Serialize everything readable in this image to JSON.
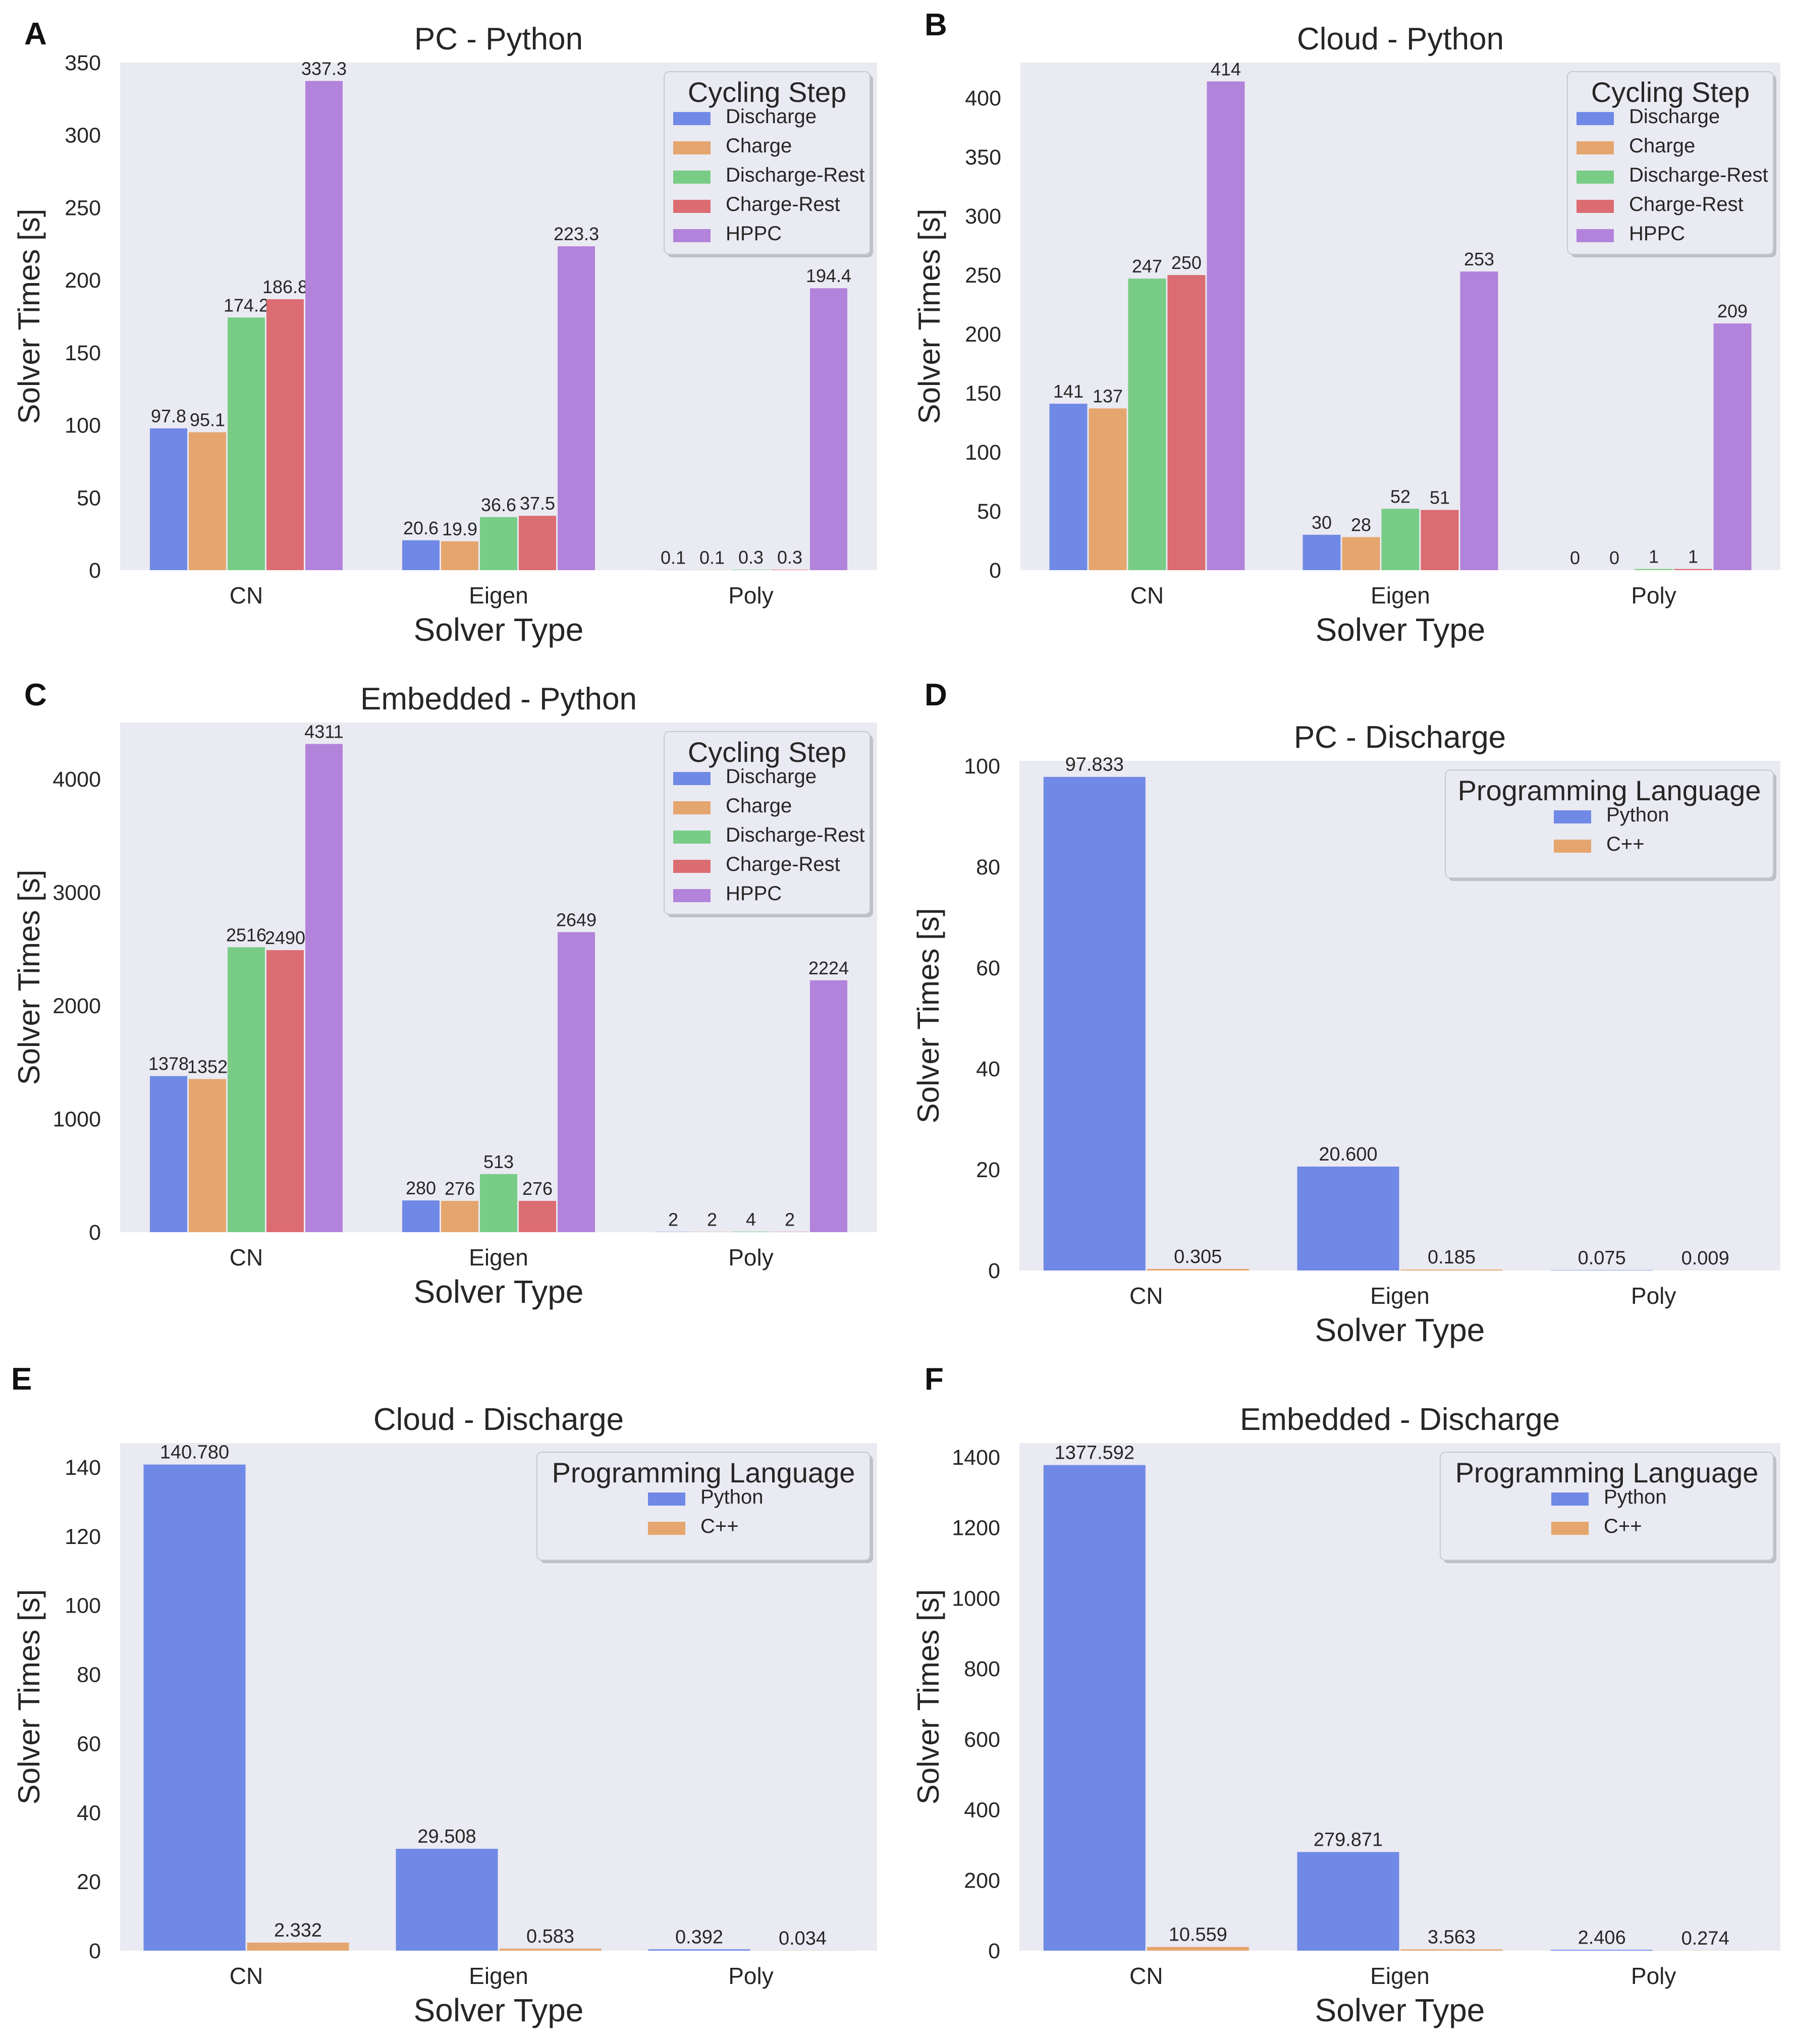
{
  "figure": {
    "colors": {
      "Discharge": "#7089e6",
      "Charge": "#e4a66e",
      "Discharge-Rest": "#79cc86",
      "Charge-Rest": "#db6c72",
      "HPPC": "#b283da",
      "Python": "#7089e6",
      "C++": "#e4a66e",
      "plot_background": "#eaeaf2",
      "text": "#262626"
    }
  },
  "chart_data": [
    {
      "panel_label": "A",
      "type": "bar",
      "title": "PC - Python",
      "xlabel": "Solver Type",
      "ylabel": "Solver Times [s]",
      "categories": [
        "CN",
        "Eigen",
        "Poly"
      ],
      "ylim": [
        0,
        350
      ],
      "yticks": [
        0,
        50,
        100,
        150,
        200,
        250,
        300,
        350
      ],
      "legend_title": "Cycling Step",
      "legend_position": "top-right",
      "series": [
        {
          "name": "Discharge",
          "values": [
            97.8,
            20.6,
            0.1
          ],
          "labels": [
            "97.8",
            "20.6",
            "0.1"
          ]
        },
        {
          "name": "Charge",
          "values": [
            95.1,
            19.9,
            0.1
          ],
          "labels": [
            "95.1",
            "19.9",
            "0.1"
          ]
        },
        {
          "name": "Discharge-Rest",
          "values": [
            174.2,
            36.6,
            0.3
          ],
          "labels": [
            "174.2",
            "36.6",
            "0.3"
          ]
        },
        {
          "name": "Charge-Rest",
          "values": [
            186.8,
            37.5,
            0.3
          ],
          "labels": [
            "186.8",
            "37.5",
            "0.3"
          ]
        },
        {
          "name": "HPPC",
          "values": [
            337.3,
            223.3,
            194.4
          ],
          "labels": [
            "337.3",
            "223.3",
            "194.4"
          ]
        }
      ]
    },
    {
      "panel_label": "B",
      "type": "bar",
      "title": "Cloud - Python",
      "xlabel": "Solver Type",
      "ylabel": "Solver Times [s]",
      "categories": [
        "CN",
        "Eigen",
        "Poly"
      ],
      "ylim": [
        0,
        430
      ],
      "yticks": [
        0,
        50,
        100,
        150,
        200,
        250,
        300,
        350,
        400
      ],
      "legend_title": "Cycling Step",
      "legend_position": "top-right",
      "series": [
        {
          "name": "Discharge",
          "values": [
            141,
            30,
            0
          ],
          "labels": [
            "141",
            "30",
            "0"
          ]
        },
        {
          "name": "Charge",
          "values": [
            137,
            28,
            0
          ],
          "labels": [
            "137",
            "28",
            "0"
          ]
        },
        {
          "name": "Discharge-Rest",
          "values": [
            247,
            52,
            1
          ],
          "labels": [
            "247",
            "52",
            "1"
          ]
        },
        {
          "name": "Charge-Rest",
          "values": [
            250,
            51,
            1
          ],
          "labels": [
            "250",
            "51",
            "1"
          ]
        },
        {
          "name": "HPPC",
          "values": [
            414,
            253,
            209
          ],
          "labels": [
            "414",
            "253",
            "209"
          ]
        }
      ]
    },
    {
      "panel_label": "C",
      "type": "bar",
      "title": "Embedded - Python",
      "xlabel": "Solver Type",
      "ylabel": "Solver Times [s]",
      "categories": [
        "CN",
        "Eigen",
        "Poly"
      ],
      "ylim": [
        0,
        4500
      ],
      "yticks": [
        0,
        1000,
        2000,
        3000,
        4000
      ],
      "legend_title": "Cycling Step",
      "legend_position": "top-right",
      "series": [
        {
          "name": "Discharge",
          "values": [
            1378,
            280,
            2
          ],
          "labels": [
            "1378",
            "280",
            "2"
          ]
        },
        {
          "name": "Charge",
          "values": [
            1352,
            276,
            2
          ],
          "labels": [
            "1352",
            "276",
            "2"
          ]
        },
        {
          "name": "Discharge-Rest",
          "values": [
            2516,
            513,
            4
          ],
          "labels": [
            "2516",
            "513",
            "4"
          ]
        },
        {
          "name": "Charge-Rest",
          "values": [
            2490,
            276,
            2
          ],
          "labels": [
            "2490",
            "276",
            "2"
          ]
        },
        {
          "name": "HPPC",
          "values": [
            4311,
            2649,
            2224
          ],
          "labels": [
            "4311",
            "2649",
            "2224"
          ]
        }
      ]
    },
    {
      "panel_label": "D",
      "type": "bar",
      "title": "PC - Discharge",
      "xlabel": "Solver Type",
      "ylabel": "Solver Times [s]",
      "categories": [
        "CN",
        "Eigen",
        "Poly"
      ],
      "ylim": [
        0,
        101
      ],
      "yticks": [
        0,
        20,
        40,
        60,
        80,
        100
      ],
      "legend_title": "Programming Language",
      "legend_position": "top-right",
      "series": [
        {
          "name": "Python",
          "values": [
            97.833,
            20.6,
            0.075
          ],
          "labels": [
            "97.833",
            "20.600",
            "0.075"
          ]
        },
        {
          "name": "C++",
          "values": [
            0.305,
            0.185,
            0.009
          ],
          "labels": [
            "0.305",
            "0.185",
            "0.009"
          ]
        }
      ]
    },
    {
      "panel_label": "E",
      "type": "bar",
      "title": "Cloud - Discharge",
      "xlabel": "Solver Type",
      "ylabel": "Solver Times [s]",
      "categories": [
        "CN",
        "Eigen",
        "Poly"
      ],
      "ylim": [
        0,
        147
      ],
      "yticks": [
        0,
        20,
        40,
        60,
        80,
        100,
        120,
        140
      ],
      "legend_title": "Programming Language",
      "legend_position": "top-right",
      "series": [
        {
          "name": "Python",
          "values": [
            140.78,
            29.508,
            0.392
          ],
          "labels": [
            "140.780",
            "29.508",
            "0.392"
          ]
        },
        {
          "name": "C++",
          "values": [
            2.332,
            0.583,
            0.034
          ],
          "labels": [
            "2.332",
            "0.583",
            "0.034"
          ]
        }
      ]
    },
    {
      "panel_label": "F",
      "type": "bar",
      "title": "Embedded - Discharge",
      "xlabel": "Solver Type",
      "ylabel": "Solver Times [s]",
      "categories": [
        "CN",
        "Eigen",
        "Poly"
      ],
      "ylim": [
        0,
        1440
      ],
      "yticks": [
        0,
        200,
        400,
        600,
        800,
        1000,
        1200,
        1400
      ],
      "legend_title": "Programming Language",
      "legend_position": "top-right",
      "series": [
        {
          "name": "Python",
          "values": [
            1377.592,
            279.871,
            2.406
          ],
          "labels": [
            "1377.592",
            "279.871",
            "2.406"
          ]
        },
        {
          "name": "C++",
          "values": [
            10.559,
            3.563,
            0.274
          ],
          "labels": [
            "10.559",
            "3.563",
            "0.274"
          ]
        }
      ]
    }
  ]
}
